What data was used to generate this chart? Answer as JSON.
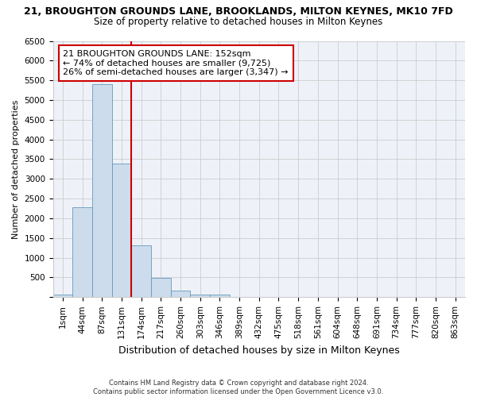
{
  "title": "21, BROUGHTON GROUNDS LANE, BROOKLANDS, MILTON KEYNES, MK10 7FD",
  "subtitle": "Size of property relative to detached houses in Milton Keynes",
  "xlabel": "Distribution of detached houses by size in Milton Keynes",
  "ylabel": "Number of detached properties",
  "footer_line1": "Contains HM Land Registry data © Crown copyright and database right 2024.",
  "footer_line2": "Contains public sector information licensed under the Open Government Licence v3.0.",
  "bar_labels": [
    "1sqm",
    "44sqm",
    "87sqm",
    "131sqm",
    "174sqm",
    "217sqm",
    "260sqm",
    "303sqm",
    "346sqm",
    "389sqm",
    "432sqm",
    "475sqm",
    "518sqm",
    "561sqm",
    "604sqm",
    "648sqm",
    "691sqm",
    "734sqm",
    "777sqm",
    "820sqm",
    "863sqm"
  ],
  "bar_values": [
    75,
    2280,
    5400,
    3380,
    1310,
    480,
    160,
    75,
    60,
    15,
    5,
    3,
    2,
    0,
    0,
    0,
    0,
    0,
    0,
    0,
    0
  ],
  "bar_color": "#ccdcec",
  "bar_edgecolor": "#6699bb",
  "grid_color": "#cccccc",
  "background_color": "#eef2f8",
  "vline_color": "#cc0000",
  "annotation_text": "21 BROUGHTON GROUNDS LANE: 152sqm\n← 74% of detached houses are smaller (9,725)\n26% of semi-detached houses are larger (3,347) →",
  "annotation_box_facecolor": "#ffffff",
  "annotation_box_edgecolor": "#cc0000",
  "ylim": [
    0,
    6500
  ],
  "yticks": [
    0,
    500,
    1000,
    1500,
    2000,
    2500,
    3000,
    3500,
    4000,
    4500,
    5000,
    5500,
    6000,
    6500
  ],
  "title_fontsize": 9,
  "subtitle_fontsize": 8.5,
  "ylabel_fontsize": 8,
  "xlabel_fontsize": 9,
  "tick_fontsize": 7.5,
  "footer_fontsize": 6.0,
  "annot_fontsize": 8
}
